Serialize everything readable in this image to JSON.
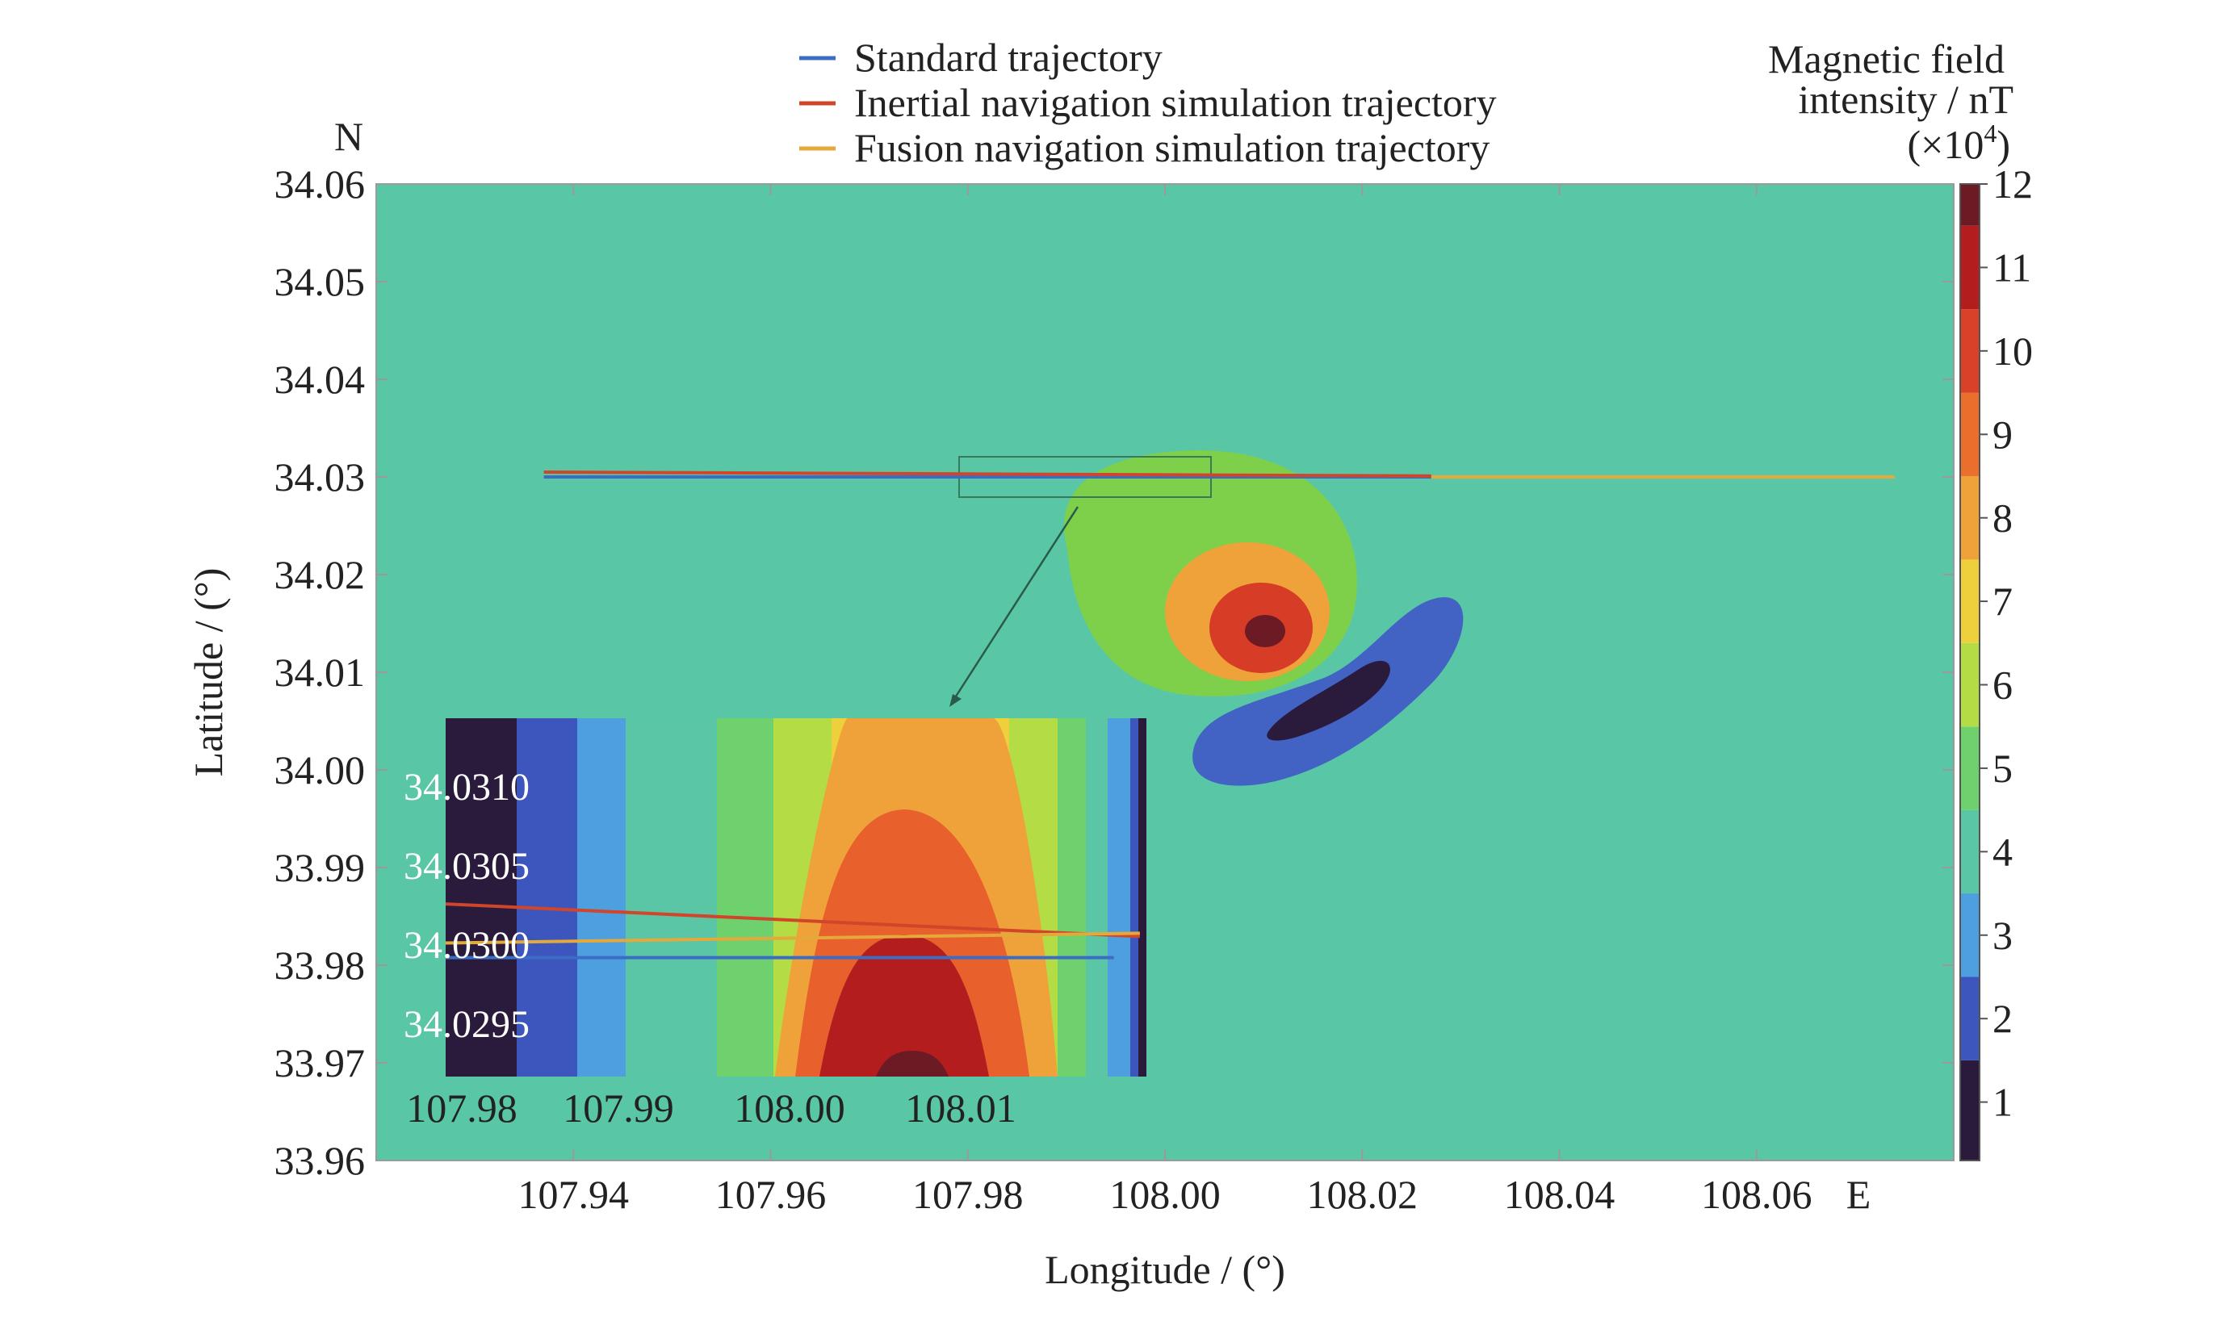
{
  "chart_data": {
    "type": "heatmap",
    "title": "",
    "xlabel": "Longitude / (°)",
    "ylabel": "Latitude / (°)",
    "x_direction_label": "E",
    "y_direction_label": "N",
    "xlim": [
      107.92,
      108.08
    ],
    "ylim": [
      33.96,
      34.06
    ],
    "x_ticks": [
      "107.94",
      "107.96",
      "107.98",
      "108.00",
      "108.02",
      "108.04",
      "108.06"
    ],
    "y_ticks": [
      "33.96",
      "33.97",
      "33.98",
      "33.99",
      "34.00",
      "34.01",
      "34.02",
      "34.03",
      "34.04",
      "34.05",
      "34.06"
    ],
    "colorbar": {
      "title_line1": "Magnetic field",
      "title_line2": "intensity / nT",
      "scale": "(×10",
      "scale_exp": "4",
      "scale_close": ")",
      "range": [
        0.3,
        12
      ],
      "ticks": [
        "1",
        "2",
        "3",
        "4",
        "5",
        "6",
        "7",
        "8",
        "9",
        "10",
        "11",
        "12"
      ],
      "colors": [
        "#2a1a3c",
        "#3d56be",
        "#4d9fe0",
        "#5ac6a6",
        "#6ed16e",
        "#b3dc45",
        "#eecf3c",
        "#efa23a",
        "#ea6e2c",
        "#d94228",
        "#b31d1e",
        "#6c1a24"
      ]
    },
    "background_level": 4,
    "field_colors": {
      "background": "#59c6a6",
      "level5": "#7ed04a",
      "level8": "#efa23a",
      "level10": "#d63c26",
      "level12": "#6c1a24",
      "level2": "#4263c4",
      "level1": "#2a1a3c"
    },
    "series": [
      {
        "name": "Standard trajectory",
        "color": "#3c6dc4",
        "x": [
          107.937,
          108.027
        ],
        "y": [
          34.03,
          34.03
        ]
      },
      {
        "name": "Inertial navigation simulation trajectory",
        "color": "#d1452a",
        "x": [
          107.937,
          108.027
        ],
        "y": [
          34.0305,
          34.0301
        ]
      },
      {
        "name": "Fusion navigation simulation trajectory",
        "color": "#e4a93a",
        "x": [
          107.937,
          108.074
        ],
        "y": [
          34.03,
          34.03
        ]
      }
    ],
    "inset": {
      "xlim": [
        107.975,
        108.018
      ],
      "ylim": [
        34.0292,
        34.0314
      ],
      "x_ticks": [
        "107.98",
        "107.99",
        "108.00",
        "108.01"
      ],
      "y_ticks": [
        "34.0310",
        "34.0305",
        "34.0300",
        "34.0295"
      ]
    }
  }
}
